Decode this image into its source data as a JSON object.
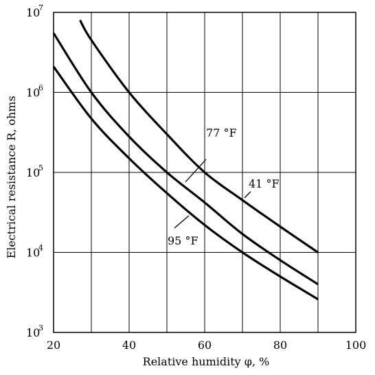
{
  "chart_data": {
    "type": "line",
    "title": "",
    "xlabel": "Relative humidity φ, %",
    "ylabel": "Electrical resistance R, ohms",
    "x_ticks": [
      "20",
      "40",
      "60",
      "80",
      "100"
    ],
    "y_ticks": [
      {
        "base": "10",
        "exp": "3"
      },
      {
        "base": "10",
        "exp": "4"
      },
      {
        "base": "10",
        "exp": "5"
      },
      {
        "base": "10",
        "exp": "6"
      },
      {
        "base": "10",
        "exp": "7"
      }
    ],
    "xlim": [
      20,
      100
    ],
    "ylim": [
      1000,
      10000000
    ],
    "yscale": "log",
    "grid": true,
    "legend": "none",
    "series": [
      {
        "name": "41 °F",
        "x": [
          27,
          30,
          40,
          50,
          60,
          70,
          80,
          90
        ],
        "y": [
          8000000,
          4500000,
          1000000,
          300000,
          100000,
          45000,
          21000,
          10000
        ]
      },
      {
        "name": "77 °F",
        "x": [
          20,
          30,
          40,
          50,
          60,
          70,
          80,
          90
        ],
        "y": [
          5500000,
          1000000,
          280000,
          100000,
          42000,
          17000,
          8000,
          4000
        ]
      },
      {
        "name": "95 °F",
        "x": [
          20,
          30,
          40,
          50,
          60,
          70,
          80,
          90
        ],
        "y": [
          2100000,
          470000,
          150000,
          55000,
          22000,
          10000,
          5000,
          2600
        ]
      }
    ],
    "line_color": "#000000"
  }
}
